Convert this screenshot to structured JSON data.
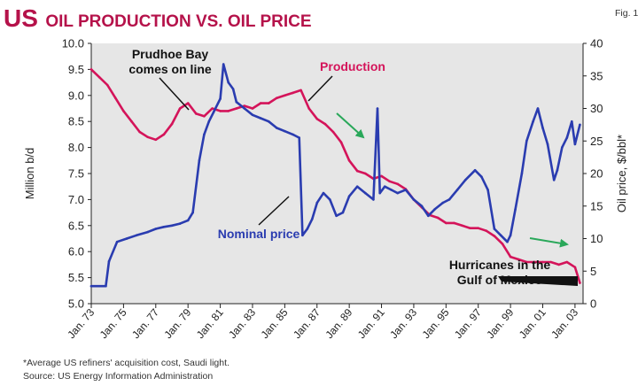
{
  "figure": {
    "title_us": "US",
    "title_rest": "OIL PRODUCTION VS. OIL PRICE",
    "fig_label": "Fig. 1",
    "footnote": "*Average US refiners' acquisition cost, Saudi light.",
    "source": "Source: US Energy Information Administration"
  },
  "colors": {
    "production": "#d4145a",
    "price": "#2a3cb0",
    "annotation_arrow": "#2aa85a",
    "plot_bg": "#e6e6e6",
    "title": "#b5124a"
  },
  "annotations": {
    "prudhoe_line1": "Prudhoe Bay",
    "prudhoe_line2": "comes on line",
    "production_label": "Production",
    "price_label": "Nominal price",
    "hurricanes_line1": "Hurricanes in the",
    "hurricanes_line2": "Gulf of Mexico"
  },
  "chart_data": {
    "type": "line",
    "title": "US OIL PRODUCTION VS. OIL PRICE",
    "xlabel": "",
    "ylabel_left": "Million b/d",
    "ylabel_right": "Oil price, $/bbl*",
    "xlim": [
      1973,
      2003.5
    ],
    "ylim_left": [
      5.0,
      10.0
    ],
    "ylim_right": [
      0,
      40
    ],
    "x_ticks": [
      1973,
      1975,
      1977,
      1979,
      1981,
      1983,
      1985,
      1987,
      1989,
      1991,
      1993,
      1995,
      1997,
      1999,
      2001,
      2003
    ],
    "x_tick_labels": [
      "Jan. 73",
      "Jan. 75",
      "Jan. 77",
      "Jan. 79",
      "Jan. 81",
      "Jan. 83",
      "Jan. 85",
      "Jan. 87",
      "Jan. 89",
      "Jan. 91",
      "Jan. 93",
      "Jan. 95",
      "Jan. 97",
      "Jan. 99",
      "Jan. 01",
      "Jan. 03"
    ],
    "y_left_ticks": [
      "5.0",
      "5.5",
      "6.0",
      "6.5",
      "7.0",
      "7.5",
      "8.0",
      "8.5",
      "9.0",
      "9.5",
      "10.0"
    ],
    "y_right_ticks": [
      "0",
      "5",
      "10",
      "15",
      "20",
      "25",
      "30",
      "35",
      "40"
    ],
    "grid": false,
    "series": [
      {
        "name": "Production",
        "axis": "left",
        "unit": "million b/d",
        "x": [
          1973.0,
          1973.5,
          1974.0,
          1974.5,
          1975.0,
          1975.5,
          1976.0,
          1976.5,
          1977.0,
          1977.5,
          1978.0,
          1978.5,
          1979.0,
          1979.5,
          1980.0,
          1980.5,
          1981.0,
          1981.5,
          1982.0,
          1982.5,
          1983.0,
          1983.5,
          1984.0,
          1984.5,
          1985.0,
          1985.5,
          1986.0,
          1986.5,
          1987.0,
          1987.5,
          1988.0,
          1988.5,
          1989.0,
          1989.5,
          1990.0,
          1990.5,
          1991.0,
          1991.5,
          1992.0,
          1992.5,
          1993.0,
          1993.5,
          1994.0,
          1994.5,
          1995.0,
          1995.5,
          1996.0,
          1996.5,
          1997.0,
          1997.5,
          1998.0,
          1998.5,
          1999.0,
          1999.5,
          2000.0,
          2000.5,
          2001.0,
          2001.5,
          2002.0,
          2002.5,
          2003.0,
          2003.3
        ],
        "values": [
          9.5,
          9.35,
          9.2,
          8.95,
          8.7,
          8.5,
          8.3,
          8.2,
          8.15,
          8.25,
          8.45,
          8.75,
          8.85,
          8.65,
          8.6,
          8.75,
          8.7,
          8.7,
          8.75,
          8.8,
          8.75,
          8.85,
          8.85,
          8.95,
          9.0,
          9.05,
          9.1,
          8.75,
          8.55,
          8.45,
          8.3,
          8.1,
          7.75,
          7.55,
          7.5,
          7.4,
          7.45,
          7.35,
          7.3,
          7.2,
          7.0,
          6.85,
          6.7,
          6.65,
          6.55,
          6.55,
          6.5,
          6.45,
          6.45,
          6.4,
          6.3,
          6.15,
          5.9,
          5.85,
          5.8,
          5.8,
          5.8,
          5.8,
          5.75,
          5.8,
          5.7,
          5.4
        ]
      },
      {
        "name": "Nominal price",
        "axis": "right",
        "unit": "$/bbl",
        "x": [
          1973.0,
          1973.9,
          1974.1,
          1974.6,
          1975.2,
          1975.8,
          1976.5,
          1977.0,
          1977.5,
          1978.0,
          1978.5,
          1979.0,
          1979.3,
          1979.7,
          1980.0,
          1980.3,
          1980.6,
          1981.0,
          1981.2,
          1981.5,
          1981.8,
          1982.0,
          1982.5,
          1983.0,
          1983.5,
          1984.0,
          1984.5,
          1985.0,
          1985.5,
          1985.9,
          1986.1,
          1986.4,
          1986.7,
          1987.0,
          1987.4,
          1987.8,
          1988.2,
          1988.6,
          1989.0,
          1989.5,
          1990.0,
          1990.5,
          1990.75,
          1990.9,
          1991.2,
          1991.6,
          1992.0,
          1992.5,
          1993.0,
          1993.5,
          1993.9,
          1994.3,
          1994.8,
          1995.2,
          1995.7,
          1996.2,
          1996.8,
          1997.2,
          1997.6,
          1998.0,
          1998.4,
          1998.8,
          1999.0,
          1999.3,
          1999.7,
          2000.0,
          2000.4,
          2000.7,
          2001.0,
          2001.3,
          2001.7,
          2001.9,
          2002.2,
          2002.5,
          2002.8,
          2003.0,
          2003.3
        ],
        "values": [
          2.7,
          2.7,
          6.5,
          9.5,
          10.0,
          10.5,
          11.0,
          11.5,
          11.8,
          12.0,
          12.3,
          12.8,
          14.0,
          22.0,
          26.0,
          28.0,
          29.5,
          31.5,
          36.8,
          34.0,
          33.0,
          31.0,
          30.0,
          29.0,
          28.5,
          28.0,
          27.0,
          26.5,
          26.0,
          25.5,
          10.5,
          11.5,
          13.0,
          15.5,
          17.0,
          16.0,
          13.5,
          14.0,
          16.5,
          18.0,
          17.0,
          16.0,
          30.0,
          17.0,
          18.0,
          17.5,
          17.0,
          17.5,
          16.0,
          15.0,
          13.5,
          14.5,
          15.5,
          16.0,
          17.5,
          19.0,
          20.5,
          19.5,
          17.5,
          11.5,
          10.5,
          9.5,
          10.5,
          14.5,
          20.0,
          25.0,
          28.0,
          30.0,
          27.0,
          24.5,
          19.0,
          20.5,
          24.0,
          25.5,
          28.0,
          24.5,
          27.5
        ]
      }
    ]
  }
}
